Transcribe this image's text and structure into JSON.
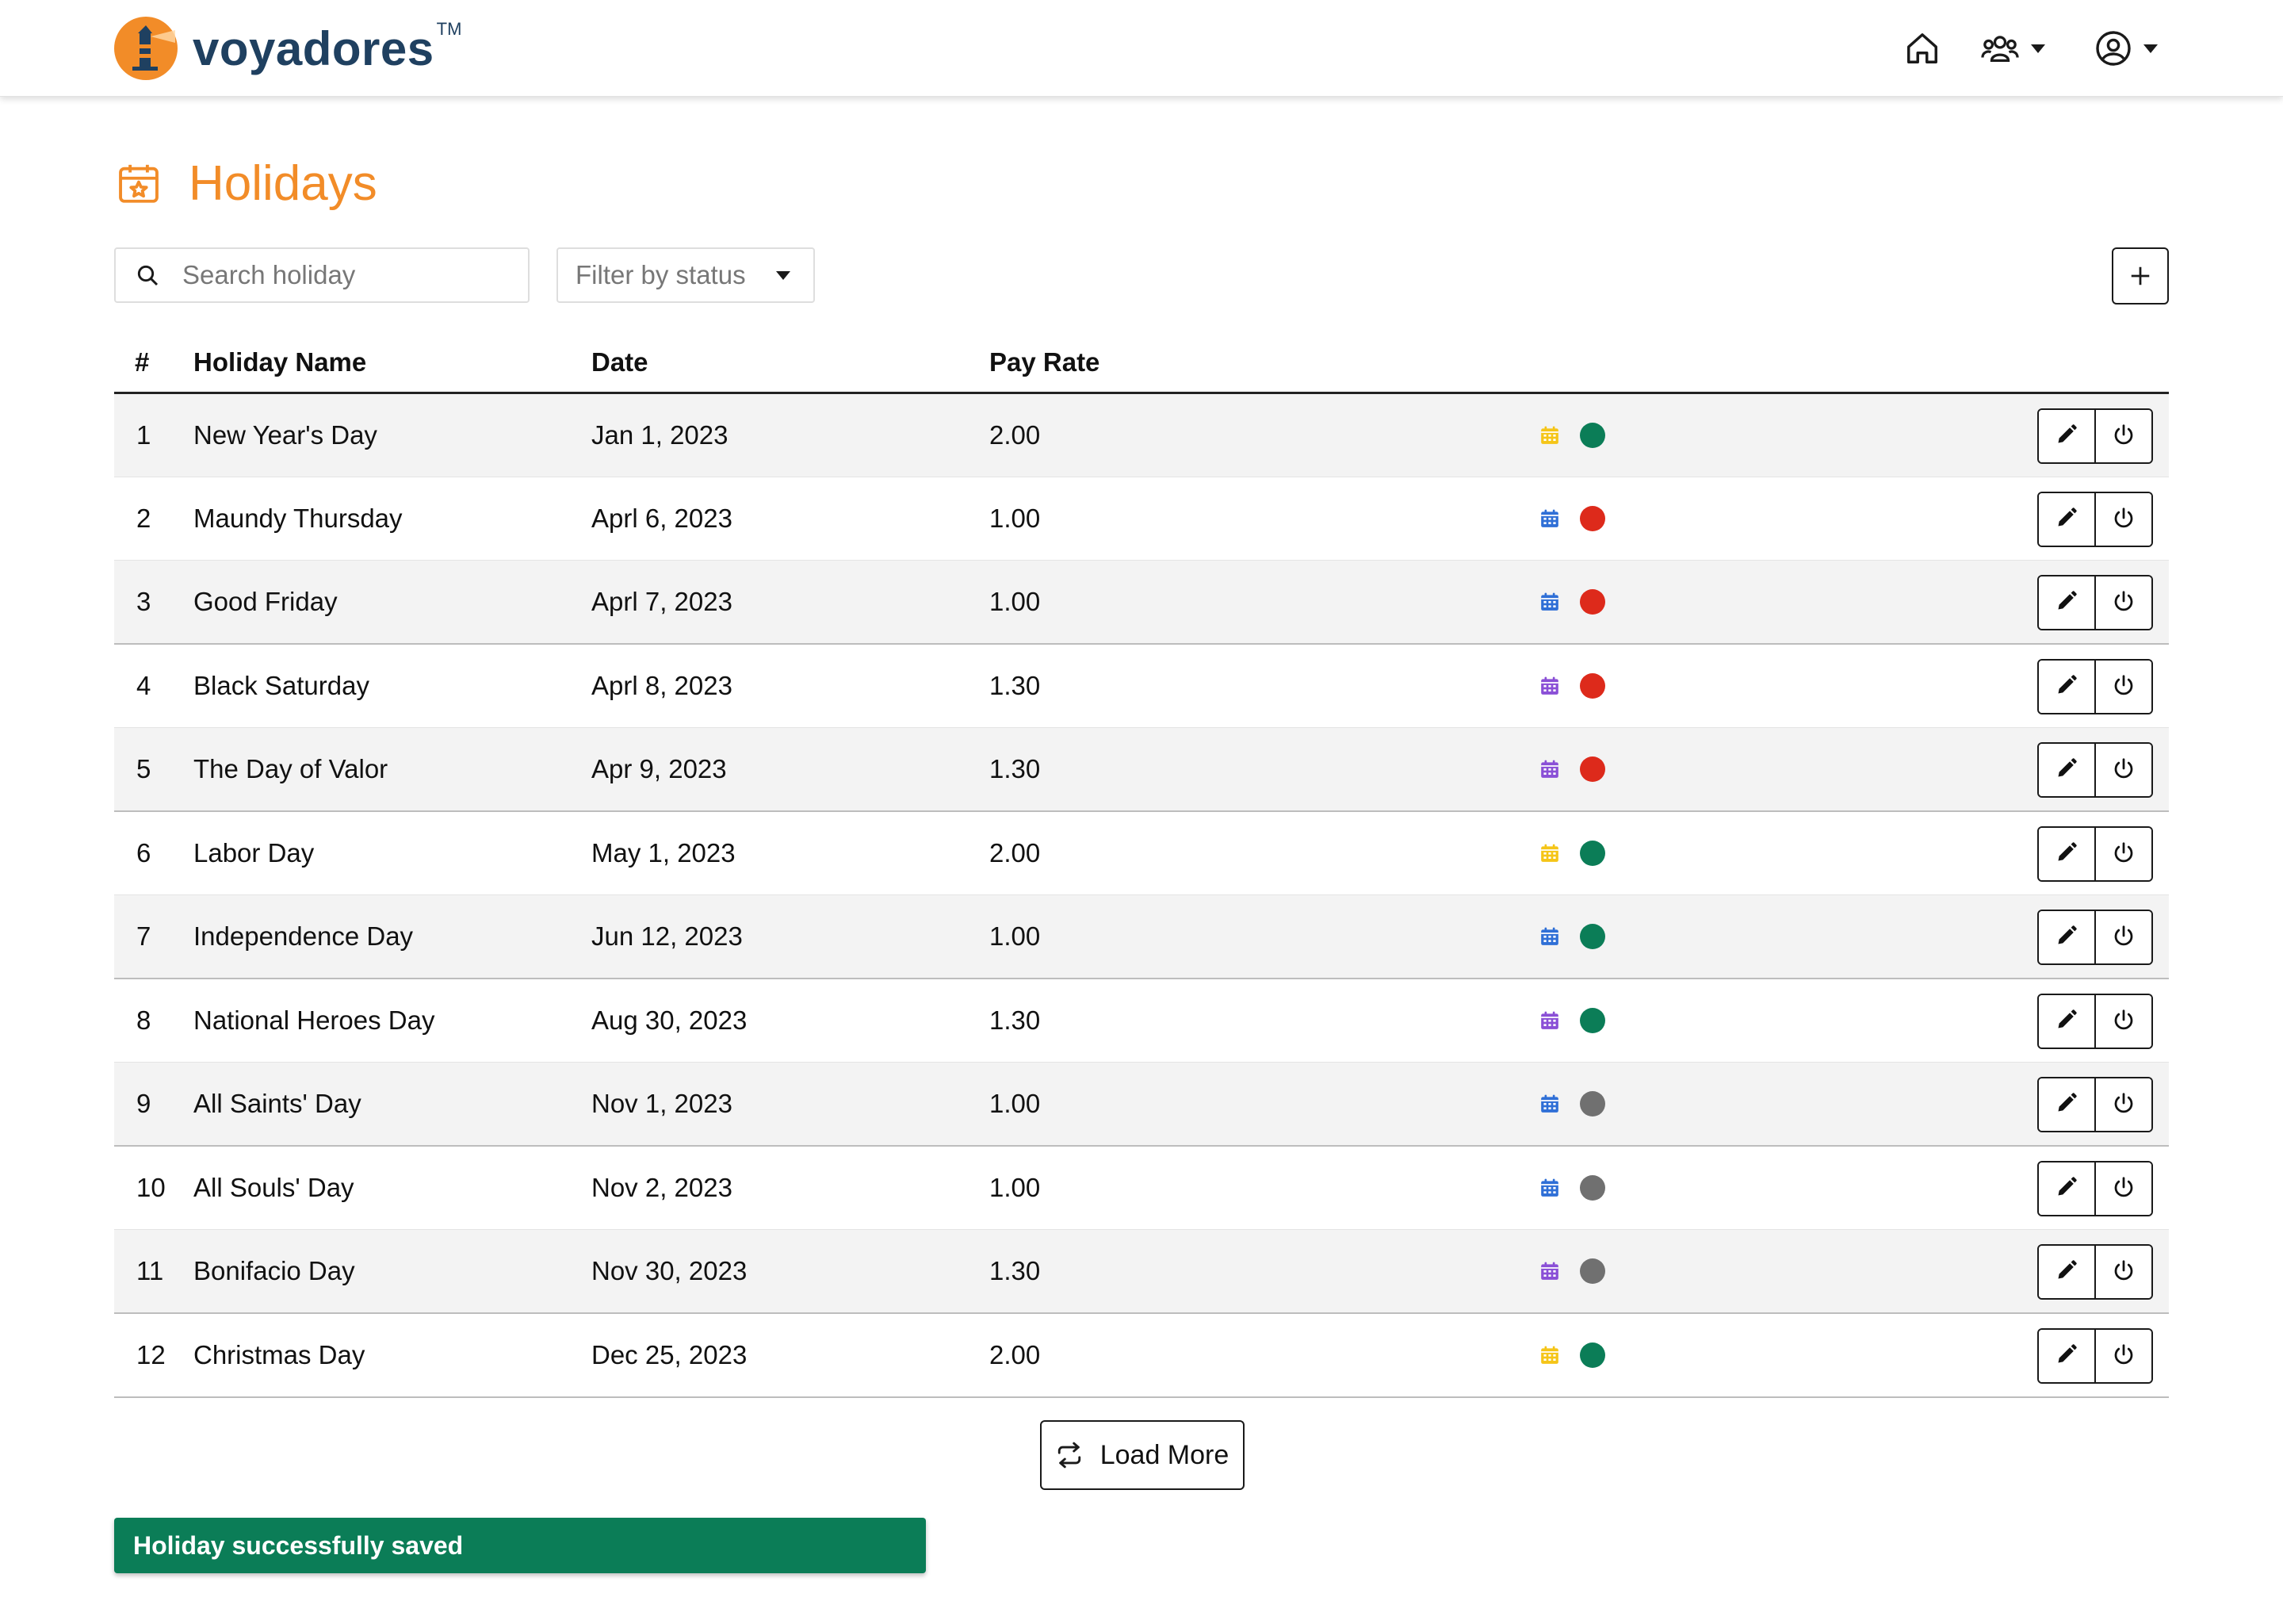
{
  "app": {
    "brand_name": "voyadores",
    "brand_tm": "TM",
    "accent_color": "#f28c28",
    "brand_color": "#1f4060"
  },
  "header": {
    "icons": [
      "home-icon",
      "users-icon",
      "account-icon"
    ]
  },
  "page": {
    "title": "Holidays",
    "title_icon": "calendar-star-icon"
  },
  "toolbar": {
    "search_placeholder": "Search holiday",
    "search_value": "",
    "filter_label": "Filter by status",
    "add_icon": "plus-icon"
  },
  "table": {
    "columns": [
      "#",
      "Holiday Name",
      "Date",
      "Pay Rate"
    ],
    "type_colors": {
      "yellow": "#f5c518",
      "blue": "#2f6fd6",
      "purple": "#8a4fd6"
    },
    "status_colors": {
      "active": "#0b7d57",
      "inactive": "#dd2a1b",
      "archived": "#707070"
    },
    "rows": [
      {
        "num": "1",
        "name": "New Year's Day",
        "date": "Jan 1, 2023",
        "rate": "2.00",
        "type": "yellow",
        "status": "active"
      },
      {
        "num": "2",
        "name": "Maundy Thursday",
        "date": "Aprl 6, 2023",
        "rate": "1.00",
        "type": "blue",
        "status": "inactive"
      },
      {
        "num": "3",
        "name": "Good Friday",
        "date": "Aprl 7, 2023",
        "rate": "1.00",
        "type": "blue",
        "status": "inactive"
      },
      {
        "num": "4",
        "name": "Black Saturday",
        "date": "Aprl 8, 2023",
        "rate": "1.30",
        "type": "purple",
        "status": "inactive"
      },
      {
        "num": "5",
        "name": "The Day of Valor",
        "date": "Apr 9, 2023",
        "rate": "1.30",
        "type": "purple",
        "status": "inactive"
      },
      {
        "num": "6",
        "name": "Labor Day",
        "date": "May 1, 2023",
        "rate": "2.00",
        "type": "yellow",
        "status": "active"
      },
      {
        "num": "7",
        "name": "Independence Day",
        "date": "Jun 12, 2023",
        "rate": "1.00",
        "type": "blue",
        "status": "active"
      },
      {
        "num": "8",
        "name": "National Heroes Day",
        "date": "Aug 30, 2023",
        "rate": "1.30",
        "type": "purple",
        "status": "active"
      },
      {
        "num": "9",
        "name": "All Saints' Day",
        "date": "Nov 1, 2023",
        "rate": "1.00",
        "type": "blue",
        "status": "archived"
      },
      {
        "num": "10",
        "name": "All Souls' Day",
        "date": "Nov 2, 2023",
        "rate": "1.00",
        "type": "blue",
        "status": "archived"
      },
      {
        "num": "11",
        "name": "Bonifacio Day",
        "date": "Nov 30, 2023",
        "rate": "1.30",
        "type": "purple",
        "status": "archived"
      },
      {
        "num": "12",
        "name": "Christmas Day",
        "date": "Dec 25, 2023",
        "rate": "2.00",
        "type": "yellow",
        "status": "active"
      }
    ]
  },
  "load_more": {
    "label": "Load More",
    "icon": "repeat-icon"
  },
  "toast": {
    "message": "Holiday successfully saved",
    "color": "#0b7d57"
  }
}
